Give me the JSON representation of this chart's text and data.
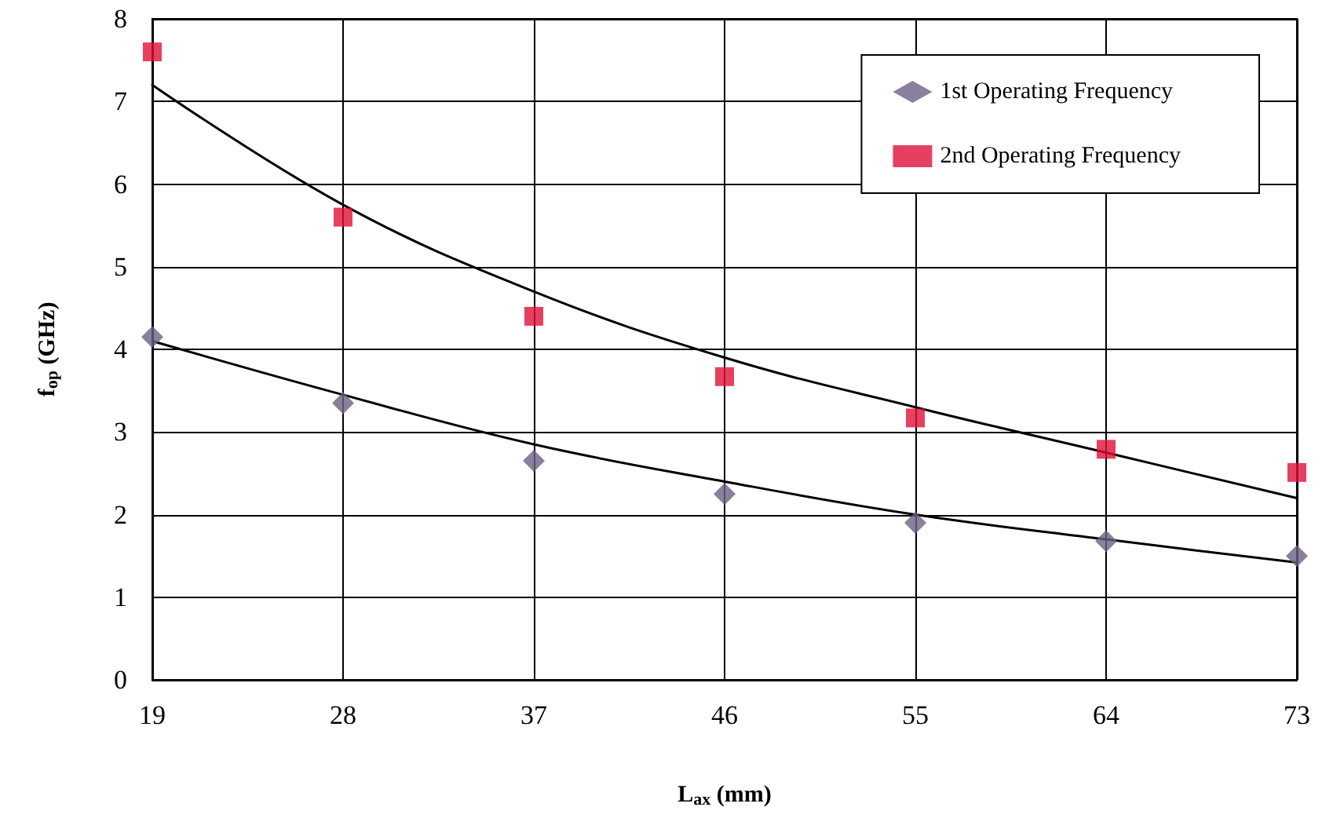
{
  "chart_data": {
    "type": "scatter",
    "xlabel": "L$_{ax}$ (mm)",
    "ylabel": "f$_{op}$ (GHz)",
    "x": [
      19,
      28,
      37,
      46,
      55,
      64,
      73
    ],
    "series": [
      {
        "name": "1st Operating Frequency",
        "color": "#6b6282",
        "marker": "diamond",
        "values": [
          4.15,
          3.35,
          2.65,
          2.25,
          1.9,
          1.68,
          1.5
        ]
      },
      {
        "name": "2nd Operating Frequency",
        "color": "#e0103a",
        "marker": "square",
        "values": [
          7.6,
          5.6,
          4.4,
          3.67,
          3.17,
          2.79,
          2.51
        ]
      },
      {
        "type": "line",
        "color": "#000000",
        "marker": "none",
        "values": [
          4.1,
          3.45,
          2.85,
          2.4,
          2.0,
          1.7,
          1.42
        ]
      },
      {
        "type": "line",
        "color": "#000000",
        "marker": "none",
        "values": [
          7.2,
          5.75,
          4.7,
          3.9,
          3.3,
          2.75,
          2.2
        ]
      }
    ],
    "xlim": [
      19,
      73
    ],
    "xticks": [
      19,
      28,
      37,
      46,
      55,
      64,
      73
    ],
    "ylim": [
      0,
      8
    ],
    "yticks": [
      0,
      1,
      2,
      3,
      4,
      5,
      6,
      7,
      8
    ],
    "grid": true,
    "legend": "top right"
  }
}
